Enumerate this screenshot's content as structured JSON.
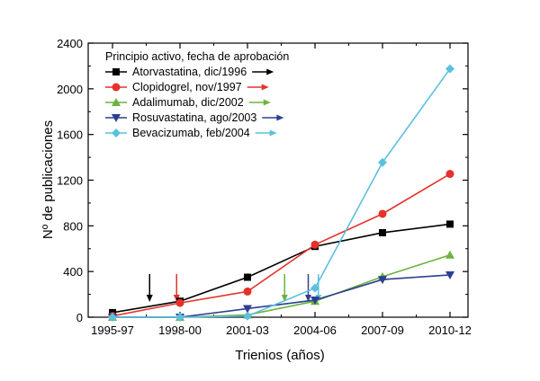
{
  "chart_data": {
    "type": "line",
    "xlabel": "Trienios (años)",
    "ylabel": "Nº de publicaciones",
    "categories": [
      "1995-97",
      "1998-00",
      "2001-03",
      "2004-06",
      "2007-09",
      "2010-12"
    ],
    "ylim": [
      0,
      2400
    ],
    "yticks": [
      0,
      400,
      800,
      1200,
      1600,
      2000,
      2400
    ],
    "grid": false,
    "legend": {
      "title": "Principio activo, fecha de aprobación",
      "position": "top-left"
    },
    "series": [
      {
        "name": "Atorvastatina, dic/1996",
        "color": "#000000",
        "marker": "square",
        "values": [
          40,
          140,
          350,
          620,
          740,
          815
        ],
        "approval_x": 0.55
      },
      {
        "name": "Clopidogrel, nov/1997",
        "color": "#e4322b",
        "marker": "circle",
        "values": [
          10,
          125,
          225,
          635,
          905,
          1255
        ],
        "approval_x": 0.95
      },
      {
        "name": "Adalimumab, dic/2002",
        "color": "#6cb33f",
        "marker": "triangle-up",
        "values": [
          0,
          0,
          20,
          140,
          355,
          545
        ],
        "approval_x": 2.55
      },
      {
        "name": "Rosuvastatina, ago/2003",
        "color": "#2e3f8f",
        "marker": "triangle-down",
        "values": [
          0,
          0,
          75,
          150,
          330,
          370
        ],
        "approval_x": 2.9
      },
      {
        "name": "Bevacizumab, feb/2004",
        "color": "#5bc0de",
        "marker": "diamond",
        "values": [
          0,
          0,
          10,
          255,
          1355,
          2175
        ],
        "approval_x": 3.05
      }
    ]
  }
}
